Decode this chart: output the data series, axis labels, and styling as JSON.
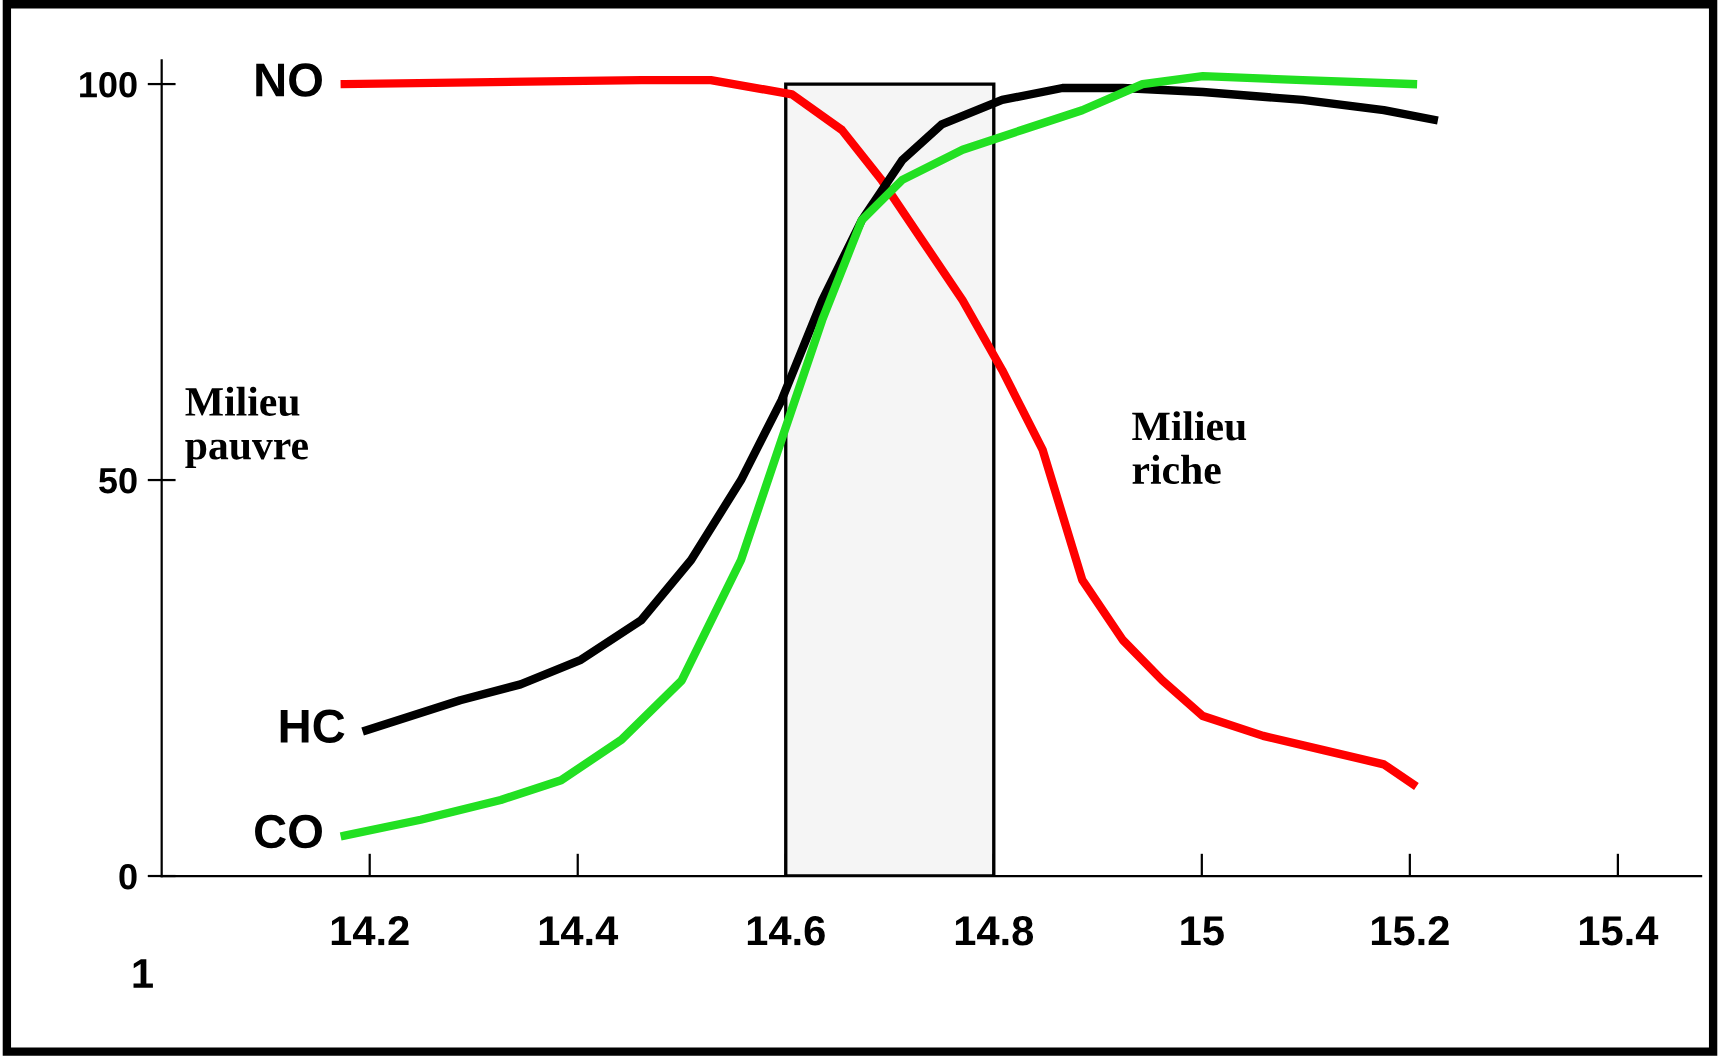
{
  "chart_data": {
    "type": "line",
    "annotations": [
      "Milieu\npauvre",
      "Milieu\nriche",
      "1"
    ],
    "series": [
      {
        "name": "NO",
        "color": "#ff0000",
        "x": [
          14.176,
          14.461,
          14.528,
          14.606,
          14.654,
          14.692,
          14.731,
          14.77,
          14.808,
          14.847,
          14.885,
          14.924,
          14.962,
          15.001,
          15.059,
          15.117,
          15.175,
          15.203
        ],
        "values": [
          100,
          100.5,
          100.5,
          98.7,
          94.2,
          87.9,
          80.3,
          72.7,
          63.9,
          53.8,
          37.4,
          29.8,
          24.7,
          20.2,
          17.7,
          15.9,
          14.1,
          11.6
        ]
      },
      {
        "name": "HC",
        "color": "#000000",
        "x": [
          14.197,
          14.287,
          14.345,
          14.403,
          14.461,
          14.509,
          14.557,
          14.596,
          14.635,
          14.673,
          14.712,
          14.75,
          14.808,
          14.866,
          14.924,
          15.001,
          15.097,
          15.175,
          15.223
        ],
        "values": [
          18.4,
          22.2,
          24.2,
          27.3,
          32.3,
          39.9,
          50,
          60.1,
          72.7,
          82.8,
          90.4,
          94.9,
          98,
          99.5,
          99.5,
          99,
          98,
          96.7,
          95.5
        ]
      },
      {
        "name": "CO",
        "color": "#22e022",
        "x": [
          14.176,
          14.249,
          14.326,
          14.384,
          14.442,
          14.5,
          14.557,
          14.596,
          14.635,
          14.673,
          14.712,
          14.77,
          14.827,
          14.885,
          14.943,
          15.001,
          15.097,
          15.203
        ],
        "values": [
          5.1,
          7.1,
          9.6,
          12.1,
          17.2,
          24.7,
          39.9,
          55.1,
          70.2,
          82.8,
          87.9,
          91.7,
          94.2,
          96.7,
          100,
          101,
          100.5,
          100
        ]
      }
    ],
    "bands": [
      {
        "axis": "x",
        "from": 14.6,
        "to": 14.8,
        "color": "#000000"
      }
    ],
    "xlim": [
      14.0,
      15.48
    ],
    "ylim": [
      0,
      103
    ],
    "xticks": [
      14.2,
      14.4,
      14.6,
      14.8,
      15,
      15.2,
      15.4
    ],
    "yticks": [
      0,
      50,
      100
    ],
    "grid": false,
    "legend": false,
    "marker": "none",
    "line_style": "solid"
  }
}
